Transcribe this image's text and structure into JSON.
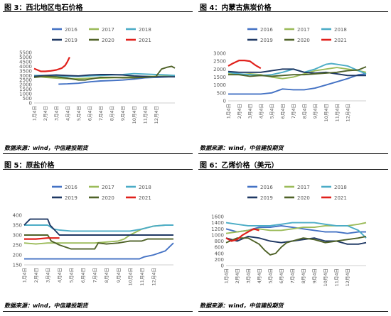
{
  "colors": {
    "2016": "#4472c4",
    "2017": "#9bbb59",
    "2018": "#4bacc6",
    "2019": "#1f3864",
    "2020": "#4f6228",
    "2021": "#e0201b"
  },
  "source": "数据来源：wind，中信建投期货",
  "chart_data": [
    {
      "type": "line",
      "title": "图 3：西北地区电石价格",
      "ylim": [
        0,
        5500
      ],
      "yticks": [
        0,
        500,
        1000,
        1500,
        2000,
        2500,
        3000,
        3500,
        4000,
        4500,
        5000,
        5500
      ],
      "categories": [
        "1月4日",
        "2月4日",
        "3月4日",
        "4月4日",
        "5月4日",
        "6月4日",
        "7月4日",
        "8月4日",
        "9月4日",
        "10月4日",
        "11月4日",
        "12月4日"
      ],
      "legend": [
        "2016",
        "2017",
        "2018",
        "2019",
        "2020",
        "2021"
      ],
      "series": [
        {
          "name": "2016",
          "x": [
            2.2,
            3,
            4,
            5,
            6,
            7,
            8,
            9,
            10,
            11,
            12,
            12.7
          ],
          "values": [
            2050,
            2080,
            2150,
            2300,
            2400,
            2450,
            2500,
            2600,
            2750,
            2800,
            2850,
            2900
          ]
        },
        {
          "name": "2017",
          "x": [
            0,
            1,
            2,
            3,
            4,
            5,
            6,
            7,
            8,
            9,
            10,
            11,
            12,
            12.7
          ],
          "values": [
            2950,
            2800,
            2700,
            2650,
            2650,
            2700,
            2700,
            2750,
            2800,
            2850,
            2900,
            2900,
            2950,
            3000
          ]
        },
        {
          "name": "2018",
          "x": [
            0,
            1,
            2,
            3,
            4,
            5,
            6,
            7,
            8,
            9,
            10,
            11,
            12,
            12.7
          ],
          "values": [
            3000,
            3000,
            2950,
            2900,
            2900,
            2950,
            3000,
            3050,
            3100,
            3200,
            3150,
            3100,
            3050,
            3000
          ]
        },
        {
          "name": "2019",
          "x": [
            0,
            1,
            2,
            3,
            4,
            5,
            6,
            7,
            8,
            9,
            10,
            11,
            12,
            12.7
          ],
          "values": [
            2900,
            3000,
            3050,
            3000,
            2950,
            3050,
            3100,
            3100,
            3050,
            2950,
            2900,
            2850,
            2850,
            2850
          ]
        },
        {
          "name": "2020",
          "x": [
            0,
            1,
            2,
            3,
            4,
            4.6,
            5,
            6,
            7,
            8,
            9,
            10,
            11,
            11.5,
            12,
            12.4,
            12.7
          ],
          "values": [
            2800,
            2900,
            2850,
            2700,
            2500,
            2500,
            2600,
            2800,
            2800,
            2750,
            2750,
            2800,
            2900,
            3700,
            3900,
            4000,
            3800
          ]
        },
        {
          "name": "2021",
          "x": [
            0,
            0.3,
            0.6,
            1,
            1.5,
            2,
            2.5,
            2.8,
            3,
            3.2
          ],
          "values": [
            3750,
            3600,
            3450,
            3450,
            3500,
            3600,
            3800,
            4100,
            4500,
            5000
          ]
        }
      ]
    },
    {
      "type": "line",
      "title": "图 4：内蒙古焦炭价格",
      "ylim": [
        0,
        3000
      ],
      "yticks": [
        0,
        500,
        1000,
        1500,
        2000,
        2500,
        3000
      ],
      "categories": [
        "1月4日",
        "2月4日",
        "3月4日",
        "4月4日",
        "5月4日",
        "6月4日",
        "7月4日",
        "8月4日",
        "9月4日",
        "10月4日",
        "11月4日",
        "12月4日"
      ],
      "legend": [
        "2016",
        "2017",
        "2018",
        "2019",
        "2020",
        "2021"
      ],
      "series": [
        {
          "name": "2016",
          "x": [
            0,
            1,
            2,
            3,
            4,
            5,
            6,
            7,
            8,
            9,
            10,
            11,
            12,
            12.7
          ],
          "values": [
            430,
            430,
            430,
            430,
            500,
            750,
            700,
            700,
            800,
            1000,
            1200,
            1400,
            1650,
            1700
          ]
        },
        {
          "name": "2017",
          "x": [
            0,
            1,
            2,
            3,
            4,
            5,
            6,
            7,
            8,
            9,
            10,
            11,
            12,
            12.7
          ],
          "values": [
            1700,
            1650,
            1700,
            1650,
            1500,
            1400,
            1500,
            1700,
            1900,
            2000,
            2100,
            2000,
            1900,
            1800
          ]
        },
        {
          "name": "2018",
          "x": [
            0,
            1,
            2,
            3,
            4,
            5,
            6,
            7,
            8,
            9,
            9.5,
            10,
            11,
            12,
            12.7
          ],
          "values": [
            1800,
            1700,
            1650,
            1600,
            1650,
            1800,
            2000,
            1800,
            2000,
            2300,
            2350,
            2300,
            2200,
            1900,
            1700
          ]
        },
        {
          "name": "2019",
          "x": [
            0,
            1,
            2,
            3,
            4,
            5,
            6,
            7,
            8,
            9,
            10,
            11,
            12,
            12.7
          ],
          "values": [
            1850,
            1800,
            1800,
            1800,
            1900,
            2000,
            2000,
            1800,
            1750,
            1800,
            1700,
            1600,
            1600,
            1600
          ]
        },
        {
          "name": "2020",
          "x": [
            0,
            1,
            2,
            3,
            4,
            5,
            6,
            7,
            8,
            9,
            10,
            11,
            12,
            12.7
          ],
          "values": [
            1650,
            1650,
            1550,
            1600,
            1550,
            1600,
            1650,
            1650,
            1700,
            1750,
            1800,
            1900,
            1950,
            2150
          ]
        },
        {
          "name": "2021",
          "x": [
            0,
            0.4,
            1,
            1.5,
            2,
            2.5,
            3
          ],
          "values": [
            2200,
            2350,
            2550,
            2550,
            2500,
            2250,
            2050
          ]
        }
      ]
    },
    {
      "type": "line",
      "title": "图 5：原盐价格",
      "ylim": [
        150,
        400
      ],
      "yticks": [
        150,
        200,
        250,
        300,
        350,
        400
      ],
      "categories": [
        "1月4日",
        "2月4日",
        "3月4日",
        "4月4日",
        "5月4日",
        "6月4日",
        "7月4日",
        "8月4日",
        "9月4日",
        "10月4日",
        "11月4日",
        "12月4日"
      ],
      "legend": [
        "2016",
        "2017",
        "2018",
        "2019",
        "2020",
        "2021"
      ],
      "series": [
        {
          "name": "2016",
          "x": [
            0,
            1,
            2,
            3,
            4,
            5,
            6,
            7,
            8,
            9,
            9.8,
            10.2,
            11,
            12,
            12.7
          ],
          "values": [
            180,
            180,
            180,
            180,
            180,
            180,
            180,
            180,
            180,
            180,
            180,
            190,
            200,
            220,
            260
          ]
        },
        {
          "name": "2017",
          "x": [
            0,
            1,
            2,
            3,
            4,
            5,
            6,
            7,
            8,
            8.5,
            9,
            10,
            11,
            12,
            12.7
          ],
          "values": [
            260,
            255,
            260,
            260,
            260,
            260,
            260,
            265,
            270,
            280,
            300,
            330,
            345,
            350,
            350
          ]
        },
        {
          "name": "2018",
          "x": [
            0,
            1,
            2,
            2.5,
            3,
            4,
            5,
            6,
            7,
            8,
            9,
            10,
            11,
            12,
            12.7
          ],
          "values": [
            350,
            350,
            350,
            330,
            325,
            320,
            320,
            320,
            320,
            320,
            320,
            330,
            345,
            350,
            350
          ]
        },
        {
          "name": "2019",
          "x": [
            0,
            0.5,
            1,
            2,
            2.2,
            3,
            4,
            5,
            6,
            7,
            8,
            9,
            10,
            11,
            12,
            12.7
          ],
          "values": [
            350,
            380,
            380,
            380,
            350,
            300,
            300,
            300,
            300,
            300,
            300,
            300,
            300,
            300,
            300,
            300
          ]
        },
        {
          "name": "2020",
          "x": [
            0,
            1,
            2,
            2.3,
            3,
            4,
            5,
            6,
            6.3,
            7,
            8,
            9,
            10,
            10.5,
            11,
            12,
            12.7
          ],
          "values": [
            300,
            300,
            300,
            270,
            250,
            230,
            230,
            230,
            260,
            255,
            260,
            270,
            270,
            280,
            280,
            280,
            280
          ]
        },
        {
          "name": "2021",
          "x": [
            0,
            1,
            2,
            3
          ],
          "values": [
            280,
            280,
            285,
            285
          ]
        }
      ]
    },
    {
      "type": "line",
      "title": "图 6：乙烯价格（美元）",
      "ylim": [
        0,
        1600
      ],
      "yticks": [
        0,
        200,
        400,
        600,
        800,
        1000,
        1200,
        1400,
        1600
      ],
      "categories": [
        "1月4日",
        "2月4日",
        "3月4日",
        "4月4日",
        "5月4日",
        "6月4日",
        "7月4日",
        "8月4日",
        "9月4日",
        "10月4日",
        "11月4日",
        "12月4日"
      ],
      "legend": [
        "2016",
        "2017",
        "2018",
        "2019",
        "2020",
        "2021"
      ],
      "series": [
        {
          "name": "2016",
          "x": [
            0,
            1,
            2,
            3,
            4,
            5,
            6,
            7,
            8,
            9,
            10,
            11,
            12,
            12.7
          ],
          "values": [
            1200,
            1100,
            1150,
            1250,
            1250,
            1300,
            1250,
            1200,
            1150,
            1100,
            1100,
            1050,
            1100,
            1100
          ]
        },
        {
          "name": "2017",
          "x": [
            0,
            1,
            2,
            3,
            4,
            5,
            6,
            7,
            8,
            9,
            10,
            11,
            12,
            12.7
          ],
          "values": [
            1050,
            1100,
            1150,
            1200,
            1150,
            1150,
            1200,
            1250,
            1250,
            1300,
            1300,
            1300,
            1350,
            1400
          ]
        },
        {
          "name": "2018",
          "x": [
            0,
            1,
            2,
            3,
            4,
            5,
            6,
            7,
            8,
            9,
            10,
            11,
            12,
            12.7
          ],
          "values": [
            1400,
            1350,
            1300,
            1300,
            1300,
            1350,
            1400,
            1400,
            1400,
            1350,
            1300,
            1300,
            1150,
            900
          ]
        },
        {
          "name": "2019",
          "x": [
            0,
            1,
            2,
            3,
            4,
            5,
            6,
            7,
            8,
            9,
            10,
            11,
            12,
            12.7
          ],
          "values": [
            900,
            800,
            950,
            900,
            800,
            750,
            800,
            850,
            900,
            800,
            800,
            700,
            700,
            750
          ]
        },
        {
          "name": "2020",
          "x": [
            0,
            1,
            2,
            3,
            3.5,
            4,
            4.5,
            5,
            5.5,
            6,
            7,
            8,
            9,
            10,
            11,
            12,
            12.7
          ],
          "values": [
            750,
            900,
            900,
            700,
            500,
            350,
            400,
            600,
            750,
            800,
            900,
            850,
            750,
            800,
            850,
            900,
            950
          ]
        },
        {
          "name": "2021",
          "x": [
            0,
            0.5,
            1,
            1.5,
            2,
            2.5,
            3
          ],
          "values": [
            900,
            800,
            850,
            1000,
            1100,
            1200,
            1150
          ]
        }
      ]
    }
  ]
}
